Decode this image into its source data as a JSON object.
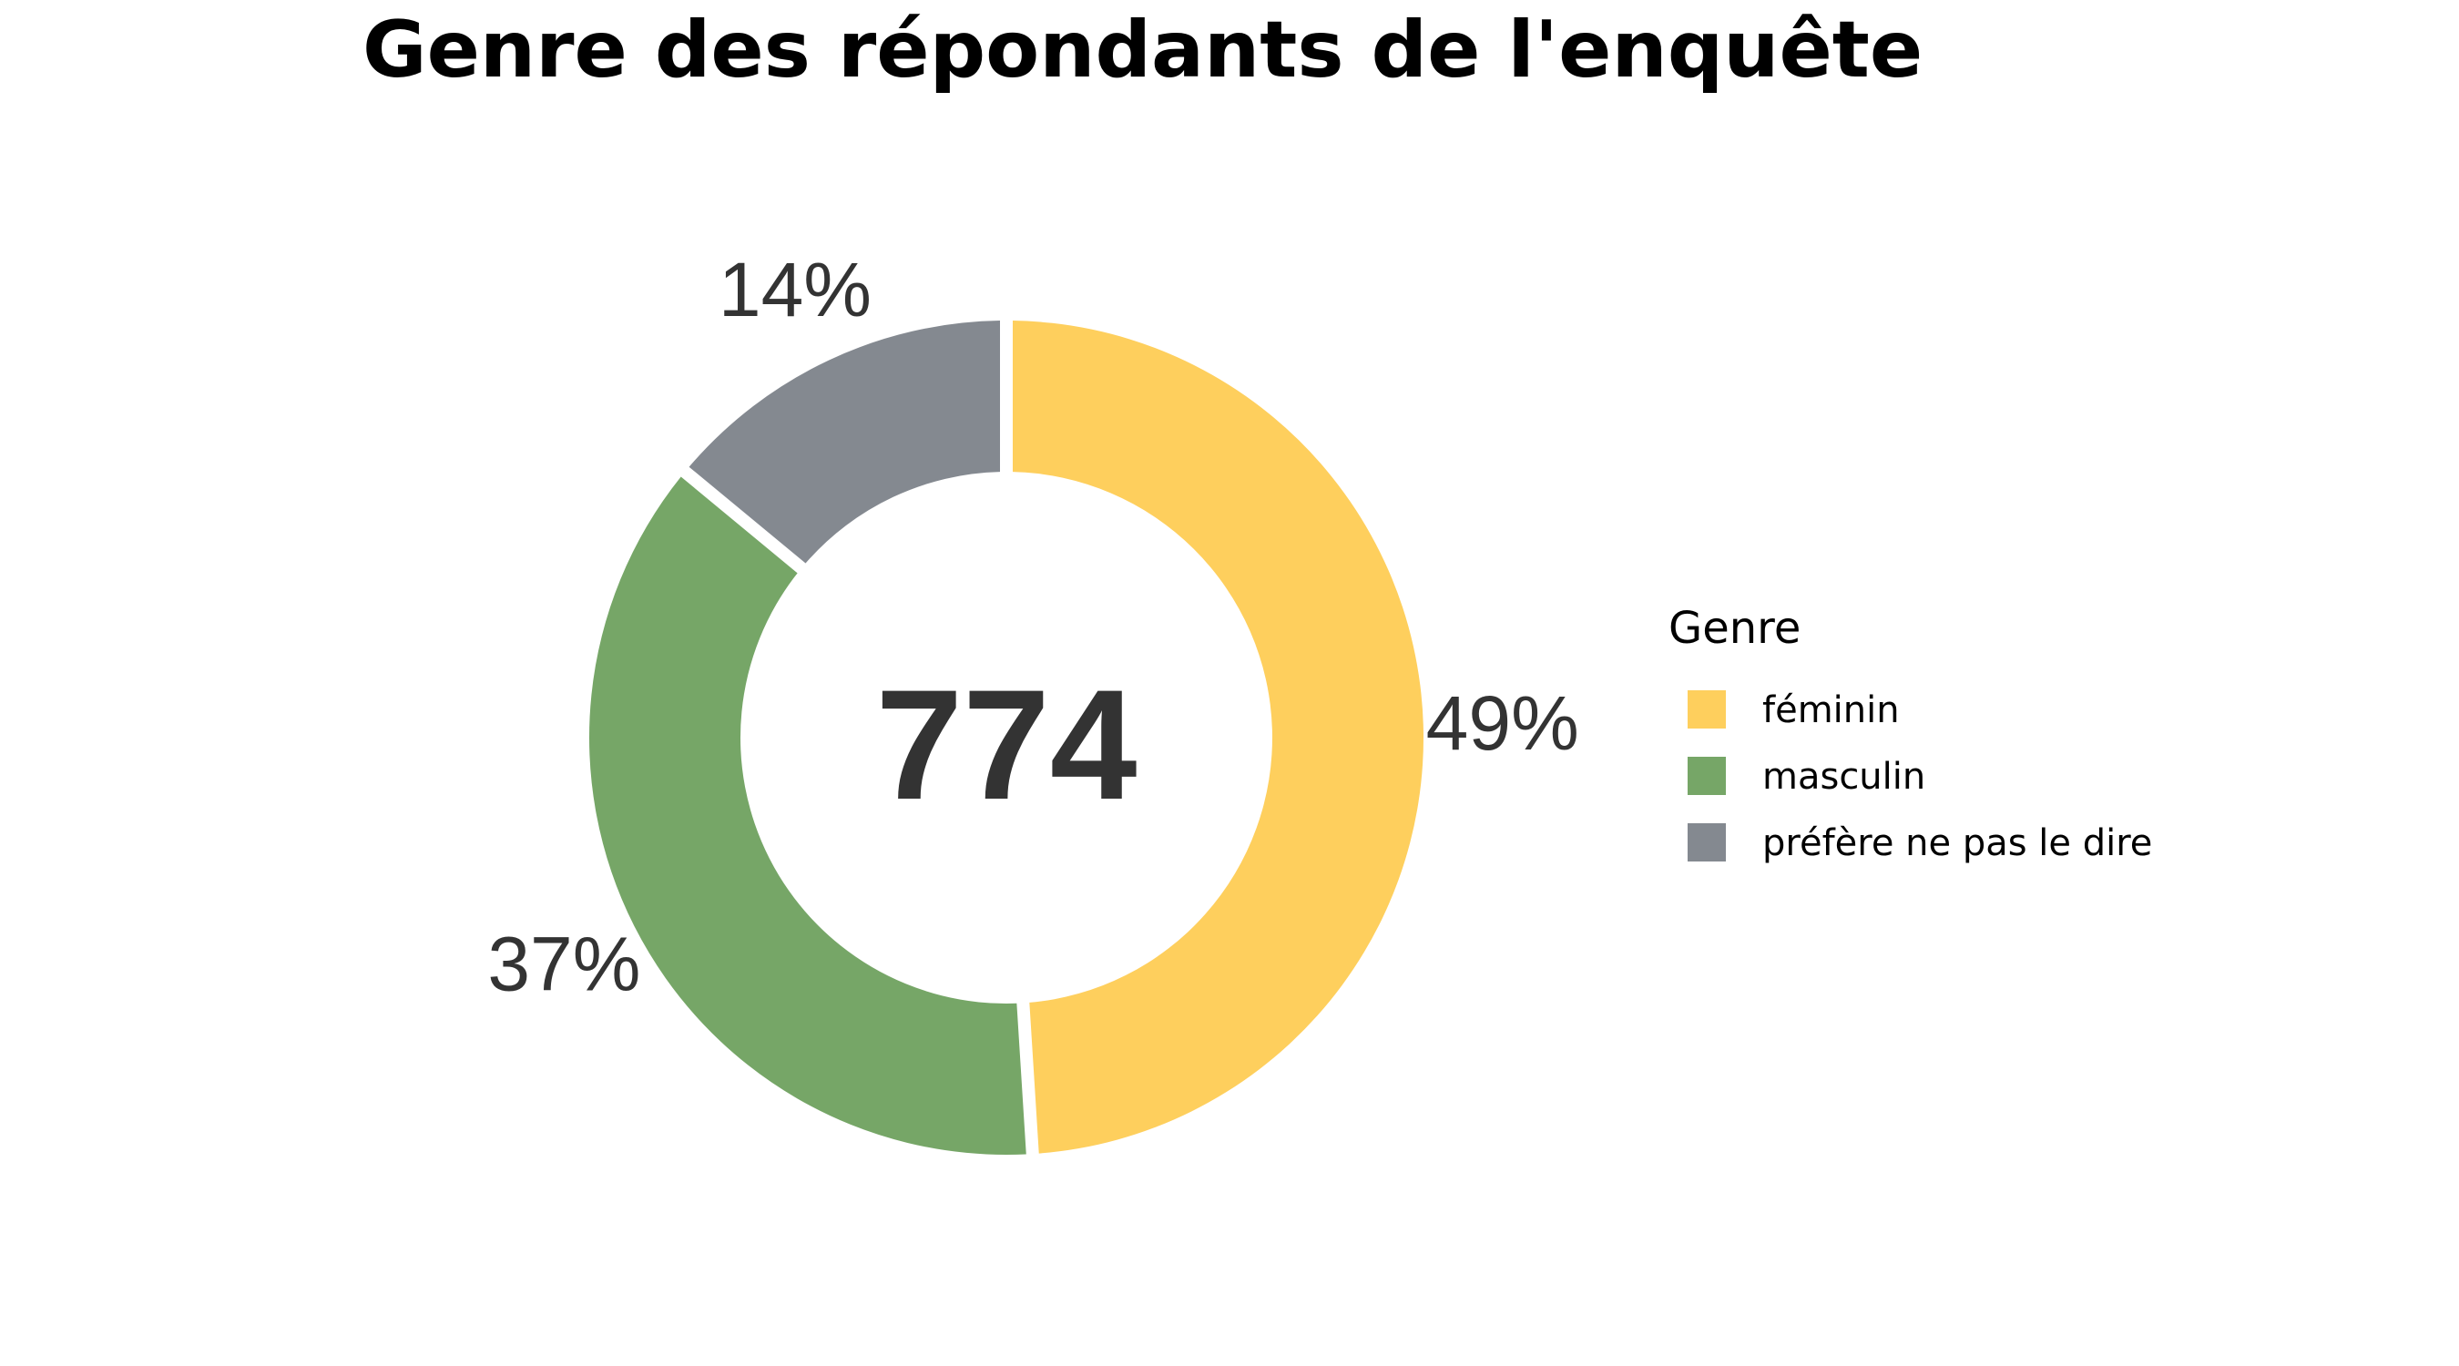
{
  "chart_data": {
    "type": "pie",
    "title": "Genre des répondants de l'enquête",
    "center_total": "774",
    "legend": {
      "title": "Genre",
      "placement": "right"
    },
    "categories": [
      "féminin",
      "masculin",
      "préfère ne pas le dire"
    ],
    "values": [
      49,
      37,
      14
    ],
    "labels": [
      "49%",
      "37%",
      "14%"
    ],
    "colors": [
      "#FECF5D",
      "#76A667",
      "#848990"
    ]
  }
}
